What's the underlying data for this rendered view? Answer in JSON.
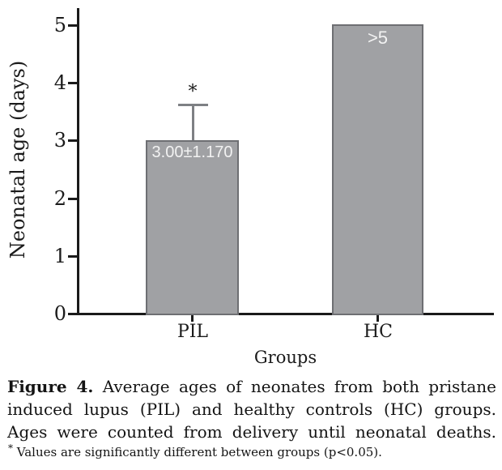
{
  "chart_data": {
    "type": "bar",
    "title": "",
    "xlabel": "Groups",
    "ylabel": "Neonatal age (days)",
    "categories": [
      "PIL",
      "HC"
    ],
    "values": [
      3.0,
      5.02
    ],
    "bar_labels": [
      "3.00±1.170",
      ">5"
    ],
    "error_bars": [
      {
        "category": "PIL",
        "mean": 3.0,
        "sd": 1.17,
        "whisker_top": 3.62,
        "significance": "*"
      }
    ],
    "yticks": [
      0,
      1,
      2,
      3,
      4,
      5
    ],
    "ylim": [
      0,
      5.3
    ],
    "grid": false,
    "legend": "none",
    "bar_color": "#a0a1a4",
    "bar_border_color": "#6e6f73",
    "error_bar_color": "#7e8084",
    "axis_color": "#1a1a1a",
    "bar_label_color": "#f2f2f2"
  },
  "caption": {
    "lines": [
      {
        "bold": "Figure 4.",
        "text": "Average ages of neonates from both pristane"
      },
      {
        "bold": "",
        "text": "induced lupus (PIL) and healthy controls (HC) groups."
      },
      {
        "bold": "",
        "text": "Ages were counted from delivery until neonatal deaths."
      }
    ],
    "footnote_marker": "*",
    "footnote_text": "Values are significantly different between groups (p<0.05)."
  }
}
